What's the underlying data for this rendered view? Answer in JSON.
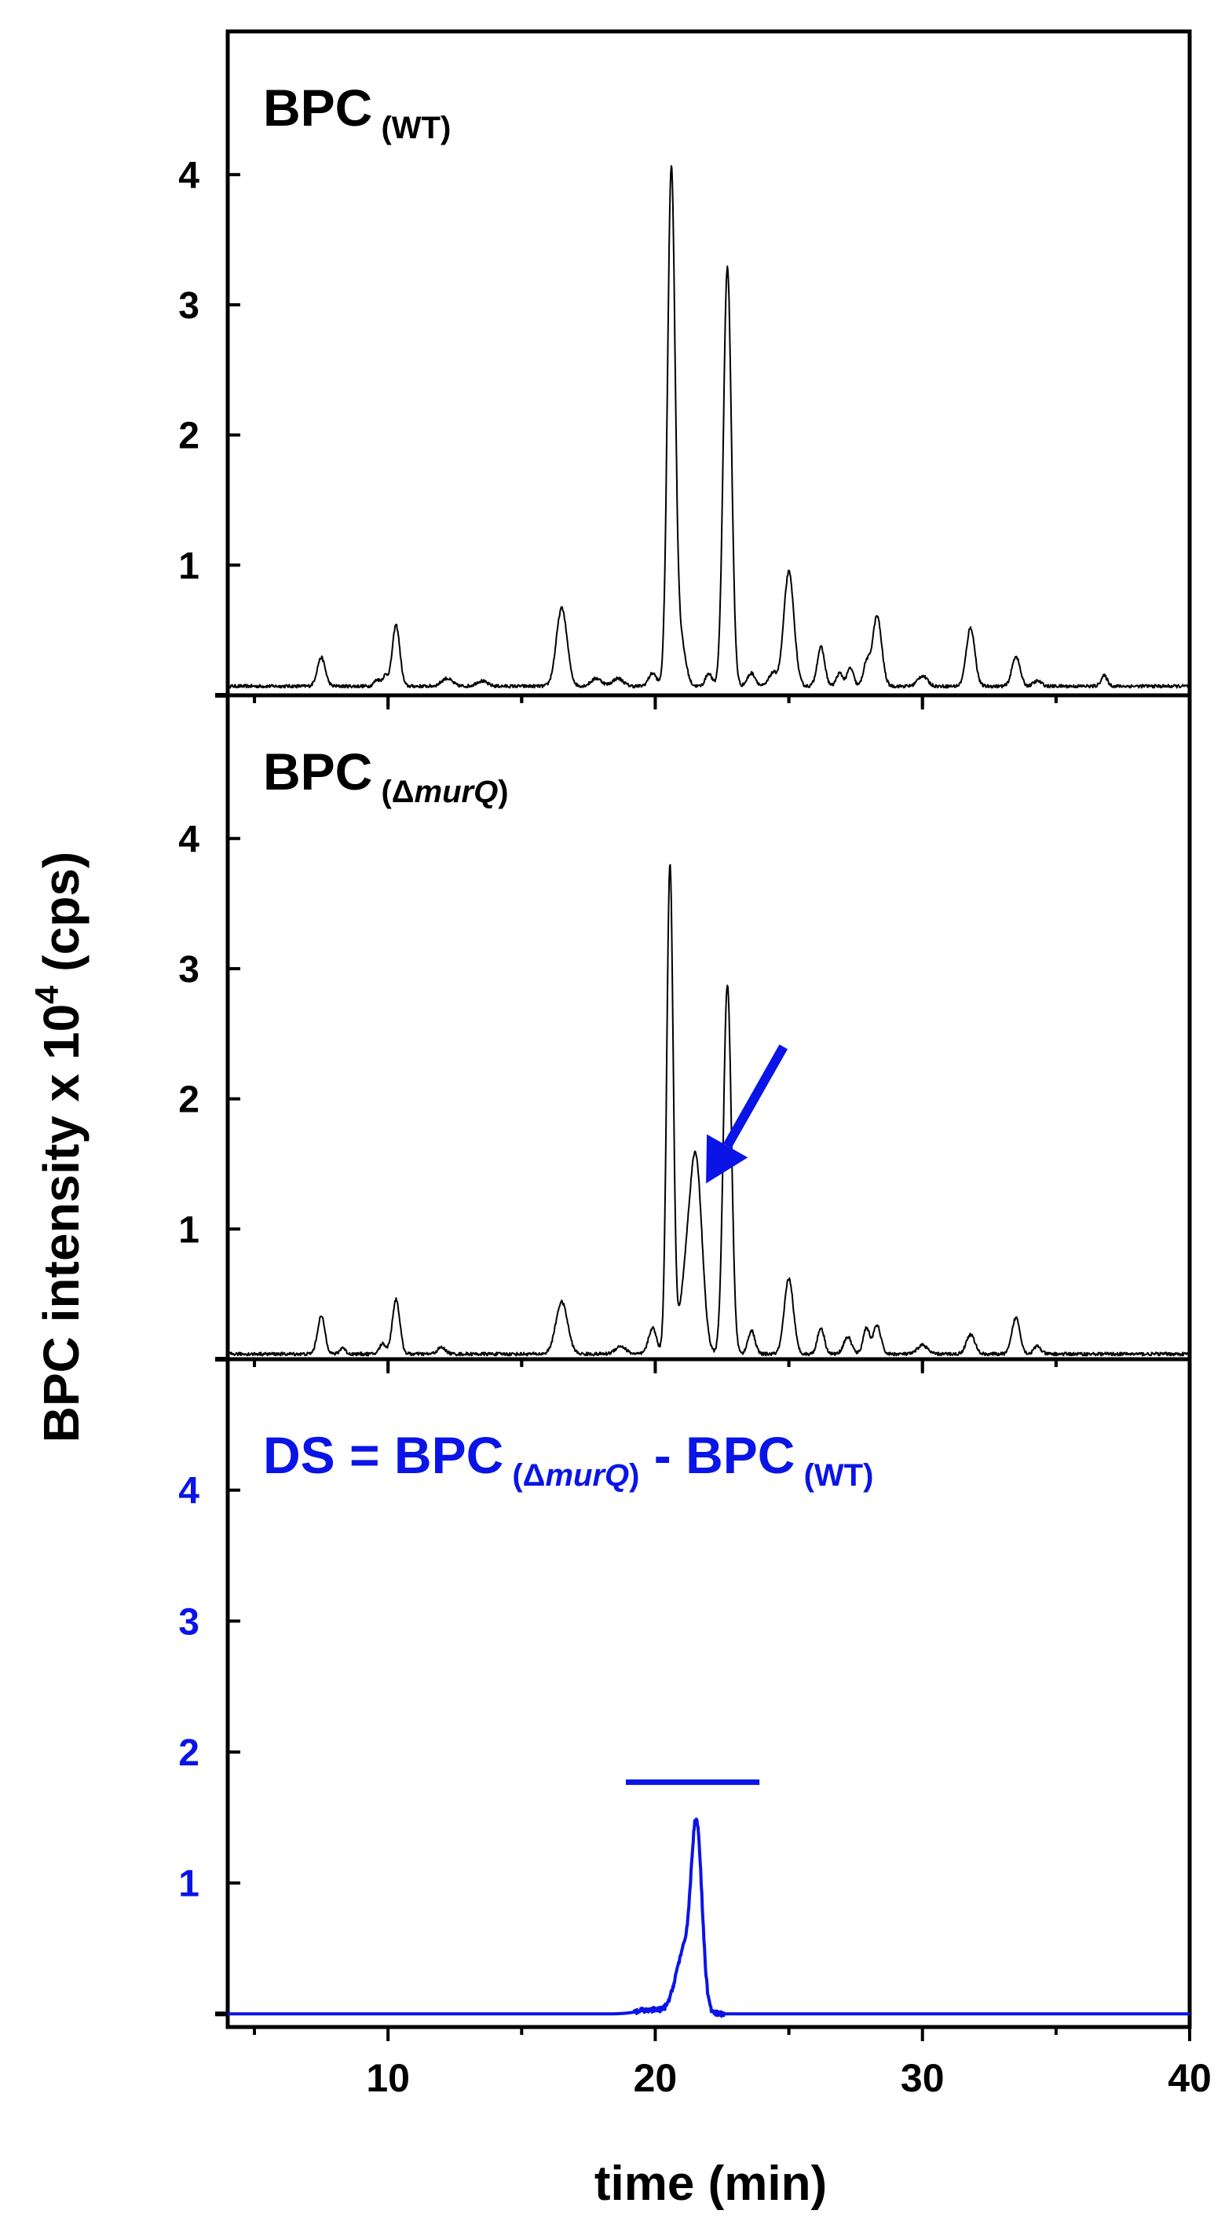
{
  "chart_data": {
    "type": "line",
    "shared_x": {
      "label": "time (min)",
      "range": [
        4,
        40
      ],
      "tick_labels": [
        10,
        20,
        30,
        40
      ],
      "major_ticks": [
        10,
        20,
        30,
        40
      ],
      "minor_ticks": [
        5,
        15,
        25,
        35
      ]
    },
    "ylabel": {
      "text_prefix": "BPC intensity x 10",
      "superscript": "4",
      "text_suffix": " (cps)"
    },
    "colors": {
      "black": "#000000",
      "blue": "#0a14e6"
    },
    "arrow": {
      "panel": 1,
      "from": [
        24.8,
        2.4
      ],
      "to": [
        21.9,
        1.35
      ],
      "color": "#0a14e6"
    },
    "panels": [
      {
        "title_main": "BPC",
        "title_sub": "(WT)",
        "ylim": [
          0,
          5.1
        ],
        "yticks": [
          1,
          2,
          3,
          4
        ],
        "color": "#000000",
        "axis_color": "#000000",
        "line_width": 2,
        "baseline": 0.07,
        "peaks": [
          {
            "x": 7.5,
            "h": 0.22,
            "w": 0.15
          },
          {
            "x": 9.6,
            "h": 0.05,
            "w": 0.12
          },
          {
            "x": 9.9,
            "h": 0.08,
            "w": 0.1
          },
          {
            "x": 10.3,
            "h": 0.47,
            "w": 0.14
          },
          {
            "x": 12.2,
            "h": 0.06,
            "w": 0.2
          },
          {
            "x": 13.5,
            "h": 0.04,
            "w": 0.2
          },
          {
            "x": 16.5,
            "h": 0.6,
            "w": 0.2
          },
          {
            "x": 17.8,
            "h": 0.06,
            "w": 0.2
          },
          {
            "x": 18.6,
            "h": 0.06,
            "w": 0.2
          },
          {
            "x": 19.9,
            "h": 0.1,
            "w": 0.15
          },
          {
            "x": 20.6,
            "h": 3.95,
            "w": 0.14
          },
          {
            "x": 20.95,
            "h": 0.35,
            "w": 0.18
          },
          {
            "x": 22.0,
            "h": 0.1,
            "w": 0.12
          },
          {
            "x": 22.7,
            "h": 3.22,
            "w": 0.15
          },
          {
            "x": 23.6,
            "h": 0.1,
            "w": 0.15
          },
          {
            "x": 24.4,
            "h": 0.1,
            "w": 0.15
          },
          {
            "x": 25.0,
            "h": 0.88,
            "w": 0.19
          },
          {
            "x": 26.2,
            "h": 0.3,
            "w": 0.14
          },
          {
            "x": 26.9,
            "h": 0.1,
            "w": 0.12
          },
          {
            "x": 27.3,
            "h": 0.14,
            "w": 0.12
          },
          {
            "x": 27.9,
            "h": 0.17,
            "w": 0.12
          },
          {
            "x": 28.3,
            "h": 0.54,
            "w": 0.17
          },
          {
            "x": 30.0,
            "h": 0.08,
            "w": 0.18
          },
          {
            "x": 31.8,
            "h": 0.45,
            "w": 0.16
          },
          {
            "x": 33.5,
            "h": 0.23,
            "w": 0.15
          },
          {
            "x": 34.3,
            "h": 0.04,
            "w": 0.15
          },
          {
            "x": 36.8,
            "h": 0.08,
            "w": 0.12
          }
        ],
        "shelves": []
      },
      {
        "title_main": "BPC",
        "title_sub": "(ΔmurQ)",
        "title_sub_parts": [
          "(Δ",
          "murQ",
          ")"
        ],
        "ylim": [
          0,
          5.1
        ],
        "yticks": [
          1,
          2,
          3,
          4
        ],
        "color": "#000000",
        "axis_color": "#000000",
        "line_width": 2,
        "baseline": 0.04,
        "peaks": [
          {
            "x": 7.5,
            "h": 0.29,
            "w": 0.14
          },
          {
            "x": 8.3,
            "h": 0.05,
            "w": 0.1
          },
          {
            "x": 9.8,
            "h": 0.08,
            "w": 0.12
          },
          {
            "x": 10.3,
            "h": 0.42,
            "w": 0.14
          },
          {
            "x": 12.0,
            "h": 0.05,
            "w": 0.15
          },
          {
            "x": 16.5,
            "h": 0.4,
            "w": 0.22
          },
          {
            "x": 18.7,
            "h": 0.06,
            "w": 0.2
          },
          {
            "x": 19.9,
            "h": 0.2,
            "w": 0.15
          },
          {
            "x": 20.55,
            "h": 3.74,
            "w": 0.12
          },
          {
            "x": 21.55,
            "h": 1.28,
            "w": 0.22
          },
          {
            "x": 22.7,
            "h": 2.84,
            "w": 0.15
          },
          {
            "x": 23.6,
            "h": 0.18,
            "w": 0.13
          },
          {
            "x": 25.0,
            "h": 0.58,
            "w": 0.17
          },
          {
            "x": 26.2,
            "h": 0.2,
            "w": 0.13
          },
          {
            "x": 27.2,
            "h": 0.13,
            "w": 0.15
          },
          {
            "x": 27.9,
            "h": 0.2,
            "w": 0.12
          },
          {
            "x": 28.3,
            "h": 0.22,
            "w": 0.14
          },
          {
            "x": 30.0,
            "h": 0.07,
            "w": 0.18
          },
          {
            "x": 31.8,
            "h": 0.15,
            "w": 0.16
          },
          {
            "x": 33.5,
            "h": 0.28,
            "w": 0.15
          },
          {
            "x": 34.3,
            "h": 0.06,
            "w": 0.13
          }
        ],
        "shelves": [
          {
            "x": 21.2,
            "h": 0.62,
            "w": 0.25
          }
        ]
      },
      {
        "title_main": "DS = BPC",
        "title_sub": "(ΔmurQ)",
        "title_sub_parts": [
          "(Δ",
          "murQ",
          ")"
        ],
        "title_mid": " - BPC",
        "title_sub2": "(WT)",
        "ylim": [
          -0.1,
          5.0
        ],
        "yticks": [
          1,
          2,
          3,
          4
        ],
        "color": "#0a14e6",
        "axis_color": "#000000",
        "line_width": 4,
        "baseline": 0.0,
        "peaks": [
          {
            "x": 21.55,
            "h": 1.38,
            "w": 0.2
          },
          {
            "x": 21.05,
            "h": 0.45,
            "w": 0.3
          }
        ],
        "shelves": [
          {
            "x": 19.9,
            "h": 0.03,
            "w": 0.55
          }
        ],
        "hbar": {
          "x1": 18.9,
          "x2": 23.9,
          "y": 1.77
        }
      }
    ]
  }
}
